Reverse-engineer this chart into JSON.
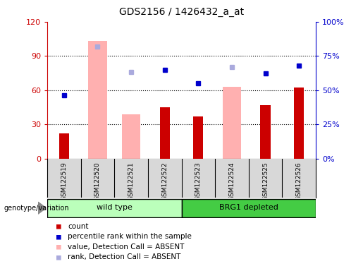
{
  "title": "GDS2156 / 1426432_a_at",
  "samples": [
    "GSM122519",
    "GSM122520",
    "GSM122521",
    "GSM122522",
    "GSM122523",
    "GSM122524",
    "GSM122525",
    "GSM122526"
  ],
  "groups_wild": [
    0,
    1,
    2,
    3
  ],
  "groups_brg1": [
    4,
    5,
    6,
    7
  ],
  "count_values": [
    22,
    0,
    0,
    45,
    37,
    0,
    47,
    62
  ],
  "percentile_rank": [
    46,
    0,
    0,
    65,
    55,
    0,
    62,
    68
  ],
  "absent_value_bars": [
    0,
    103,
    39,
    0,
    0,
    63,
    0,
    0
  ],
  "absent_rank_dots": [
    0,
    82,
    63,
    0,
    0,
    67,
    0,
    0
  ],
  "absent_flags": [
    false,
    true,
    true,
    false,
    false,
    true,
    false,
    false
  ],
  "present_flags": [
    true,
    false,
    false,
    true,
    true,
    false,
    true,
    true
  ],
  "ylim_left": [
    0,
    120
  ],
  "ylim_right": [
    0,
    100
  ],
  "yticks_left": [
    0,
    30,
    60,
    90,
    120
  ],
  "yticks_right": [
    0,
    25,
    50,
    75,
    100
  ],
  "ytick_labels_right": [
    "0%",
    "25%",
    "50%",
    "75%",
    "100%"
  ],
  "bar_color_red": "#cc0000",
  "bar_color_pink": "#ffb0b0",
  "dot_color_blue": "#0000cc",
  "dot_color_lightblue": "#aaaadd",
  "group_color_wt": "#bbffbb",
  "group_color_brg1": "#44cc44",
  "group_border_color": "#000000",
  "plot_bg": "#ffffff",
  "gray_bg": "#d8d8d8",
  "left_yaxis_color": "#cc0000",
  "right_yaxis_color": "#0000cc",
  "legend_items": [
    {
      "color": "#cc0000",
      "label": "count"
    },
    {
      "color": "#0000cc",
      "label": "percentile rank within the sample"
    },
    {
      "color": "#ffb0b0",
      "label": "value, Detection Call = ABSENT"
    },
    {
      "color": "#aaaadd",
      "label": "rank, Detection Call = ABSENT"
    }
  ]
}
